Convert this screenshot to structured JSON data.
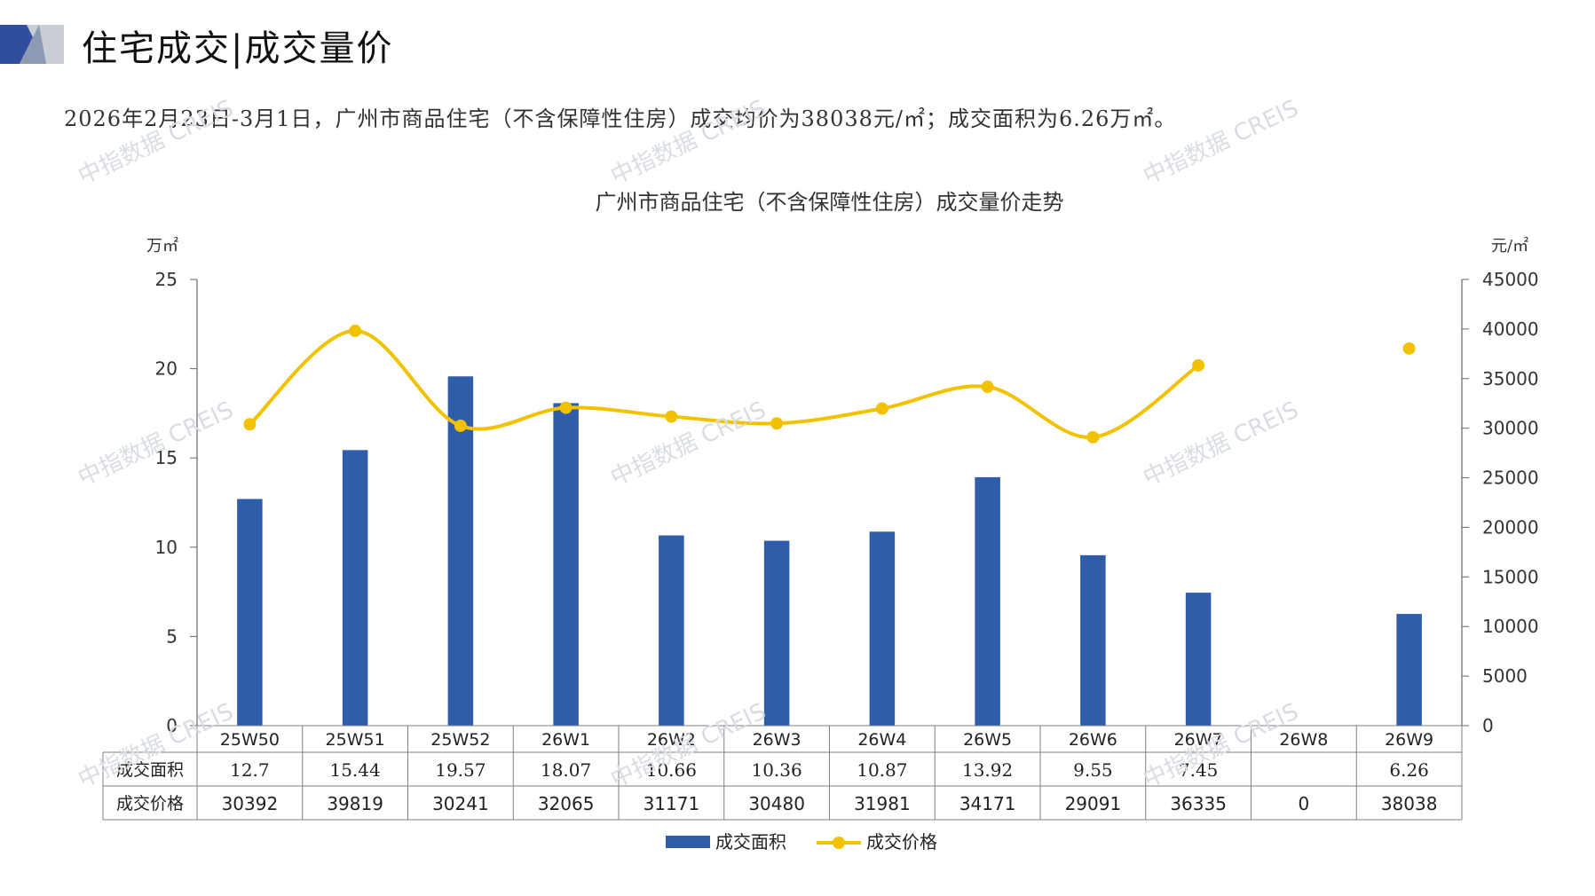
{
  "page": {
    "title": "住宅成交|成交量价",
    "summary": "2026年2月23日-3月1日，广州市商品住宅（不含保障性住房）成交均价为38038元/㎡；成交面积为6.26万㎡。"
  },
  "colors": {
    "bar": "#2F5DAA",
    "line": "#F2C200",
    "axis": "#666666",
    "grid_border": "#7f7f7f",
    "logo_dark": "#2F4F9E",
    "logo_light": "#C8CDD6"
  },
  "watermark": "中指数据 CREIS",
  "chart_data": {
    "type": "bar",
    "title": "广州市商品住宅（不含保障性住房）成交量价走势",
    "categories": [
      "25W50",
      "25W51",
      "25W52",
      "26W1",
      "26W2",
      "26W3",
      "26W4",
      "26W5",
      "26W6",
      "26W7",
      "26W8",
      "26W9"
    ],
    "left_axis": {
      "unit": "万㎡",
      "ylim": [
        0,
        25
      ],
      "ticks": [
        "25",
        "20",
        "15",
        "10",
        "5",
        "0"
      ]
    },
    "right_axis": {
      "unit": "元/㎡",
      "ylim": [
        0,
        45000
      ],
      "ticks": [
        "45000",
        "40000",
        "35000",
        "30000",
        "25000",
        "20000",
        "15000",
        "10000",
        "5000",
        "0"
      ]
    },
    "series": [
      {
        "name": "成交面积",
        "type": "bar",
        "axis": "left",
        "values": [
          12.7,
          15.44,
          19.57,
          18.07,
          10.66,
          10.36,
          10.87,
          13.92,
          9.55,
          7.45,
          null,
          6.26
        ],
        "labels": [
          "12.7",
          "15.44",
          "19.57",
          "18.07",
          "10.66",
          "10.36",
          "10.87",
          "13.92",
          "9.55",
          "7.45",
          "",
          "6.26"
        ]
      },
      {
        "name": "成交价格",
        "type": "line",
        "axis": "right",
        "values": [
          30392,
          39819,
          30241,
          32065,
          31171,
          30480,
          31981,
          34171,
          29091,
          36335,
          0,
          38038
        ],
        "labels": [
          "30392",
          "39819",
          "30241",
          "32065",
          "31171",
          "30480",
          "31981",
          "34171",
          "29091",
          "36335",
          "0",
          "38038"
        ]
      }
    ],
    "legend": [
      "成交面积",
      "成交价格"
    ],
    "legend_position": "bottom"
  }
}
